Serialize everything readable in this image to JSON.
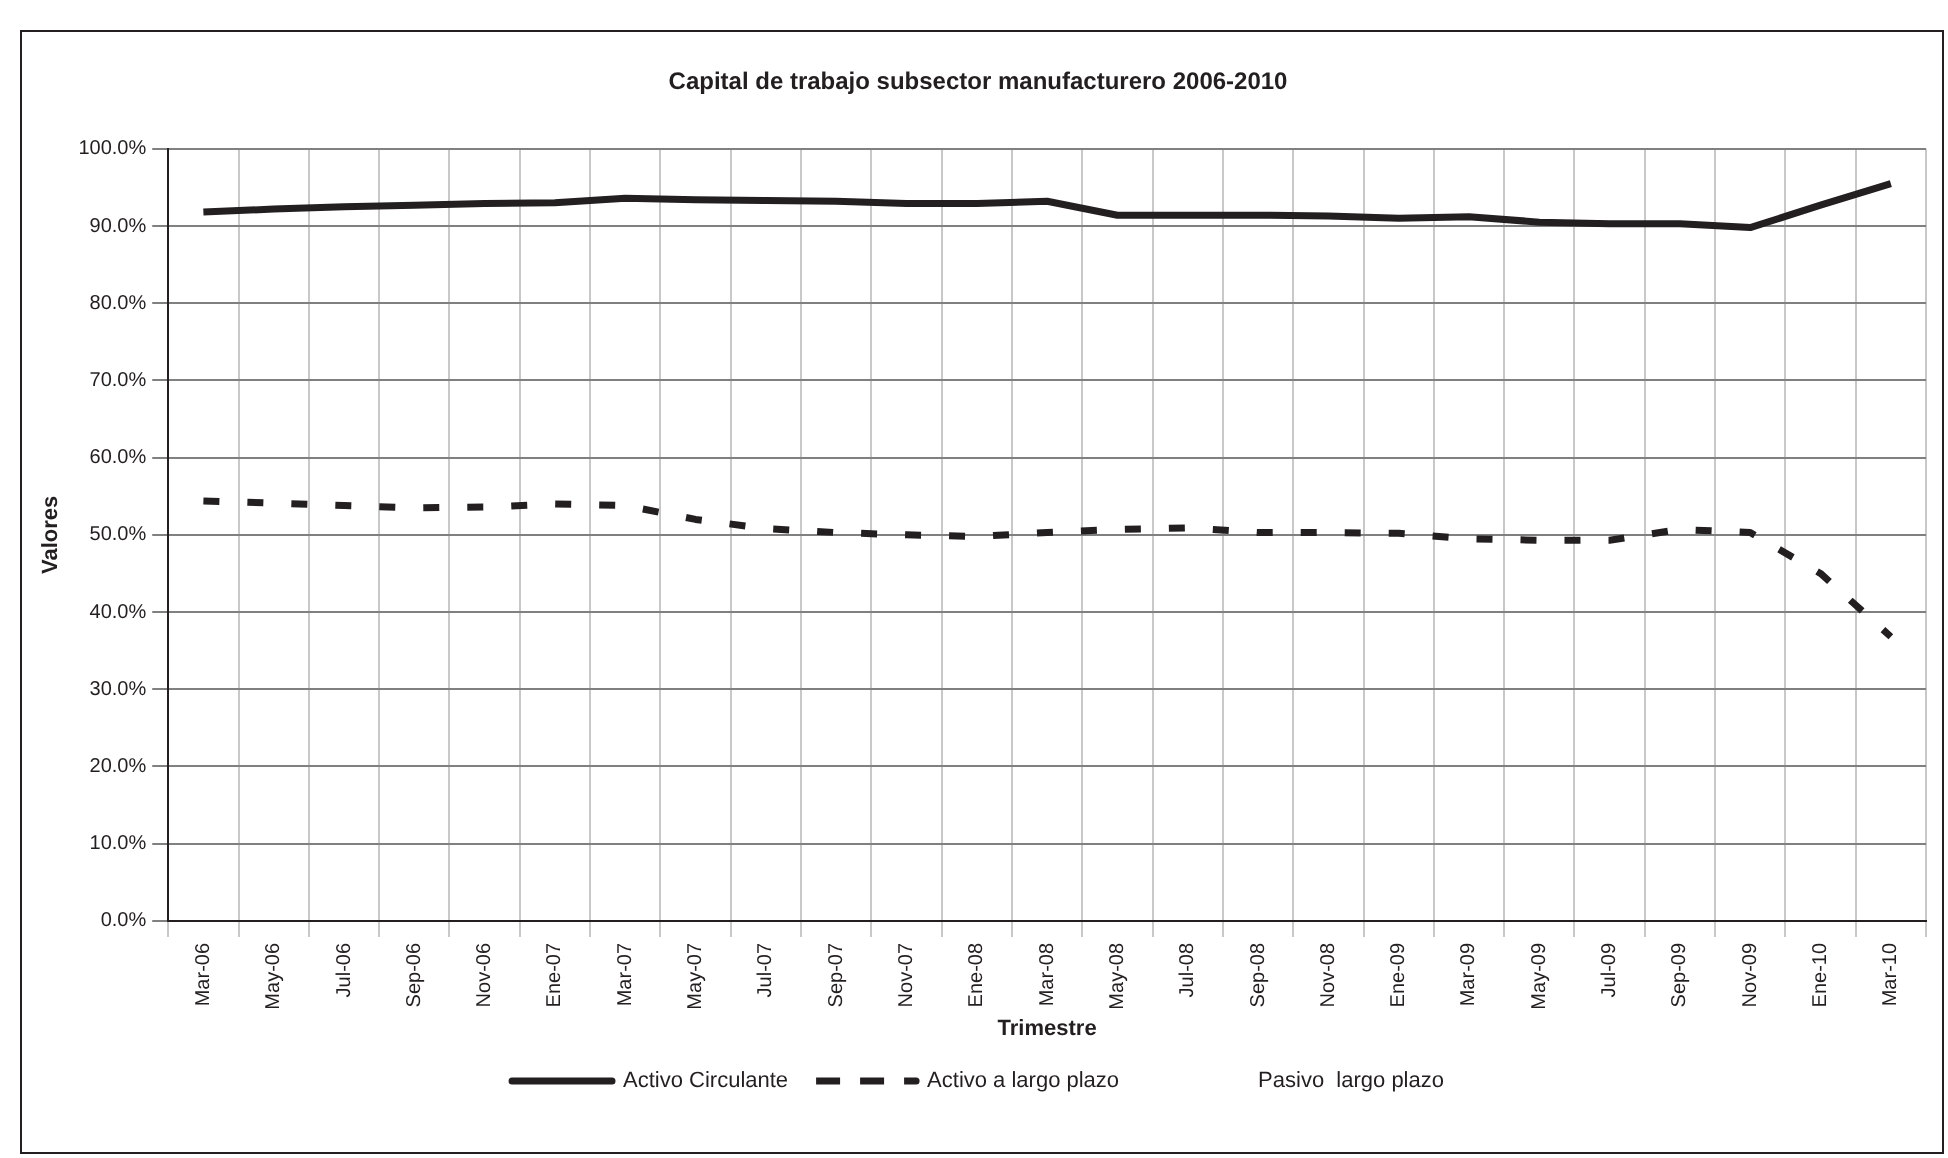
{
  "chart_data": {
    "type": "line",
    "title": "Capital de trabajo subsector manufacturero 2006-2010",
    "xlabel": "Trimestre",
    "ylabel": "Valores",
    "categories": [
      "Mar-06",
      "May-06",
      "Jul-06",
      "Sep-06",
      "Nov-06",
      "Ene-07",
      "Mar-07",
      "May-07",
      "Jul-07",
      "Sep-07",
      "Nov-07",
      "Ene-08",
      "Mar-08",
      "May-08",
      "Jul-08",
      "Sep-08",
      "Nov-08",
      "Ene-09",
      "Mar-09",
      "May-09",
      "Jul-09",
      "Sep-09",
      "Nov-09",
      "Ene-10",
      "Mar-10"
    ],
    "series": [
      {
        "name": "Activo Circulante",
        "color": "#231f20",
        "line_style": "solid",
        "values": [
          91.8,
          92.2,
          92.5,
          92.7,
          92.9,
          93.0,
          93.6,
          93.4,
          93.3,
          93.2,
          92.9,
          92.9,
          93.2,
          91.4,
          91.4,
          91.4,
          91.3,
          91.0,
          91.2,
          90.5,
          90.3,
          90.3,
          89.8,
          92.7,
          95.5
        ]
      },
      {
        "name": "Activo a largo plazo",
        "color": "#231f20",
        "line_style": "dashed",
        "values": [
          54.4,
          54.1,
          53.8,
          53.5,
          53.6,
          54.0,
          53.8,
          52.0,
          50.8,
          50.3,
          50.0,
          49.8,
          50.3,
          50.7,
          50.9,
          50.3,
          50.3,
          50.2,
          49.5,
          49.3,
          49.3,
          50.7,
          50.3,
          45.0,
          36.8
        ]
      },
      {
        "name": "Pasivo  largo plazo",
        "line_style": "solid",
        "values": [
          null,
          null,
          null,
          null,
          null,
          null,
          null,
          null,
          null,
          null,
          null,
          null,
          null,
          null,
          null,
          null,
          null,
          null,
          null,
          null,
          null,
          null,
          null,
          null,
          null
        ]
      }
    ],
    "ylim": [
      0,
      100
    ],
    "yticks": [
      {
        "value": 0,
        "label": "0.0%"
      },
      {
        "value": 10,
        "label": "10.0%"
      },
      {
        "value": 20,
        "label": "20.0%"
      },
      {
        "value": 30,
        "label": "30.0%"
      },
      {
        "value": 40,
        "label": "40.0%"
      },
      {
        "value": 50,
        "label": "50.0%"
      },
      {
        "value": 60,
        "label": "60.0%"
      },
      {
        "value": 70,
        "label": "70.0%"
      },
      {
        "value": 80,
        "label": "80.0%"
      },
      {
        "value": 90,
        "label": "90.0%"
      },
      {
        "value": 100,
        "label": "100.0%"
      }
    ],
    "grid": true,
    "legend": "bottom",
    "marker": "none"
  }
}
